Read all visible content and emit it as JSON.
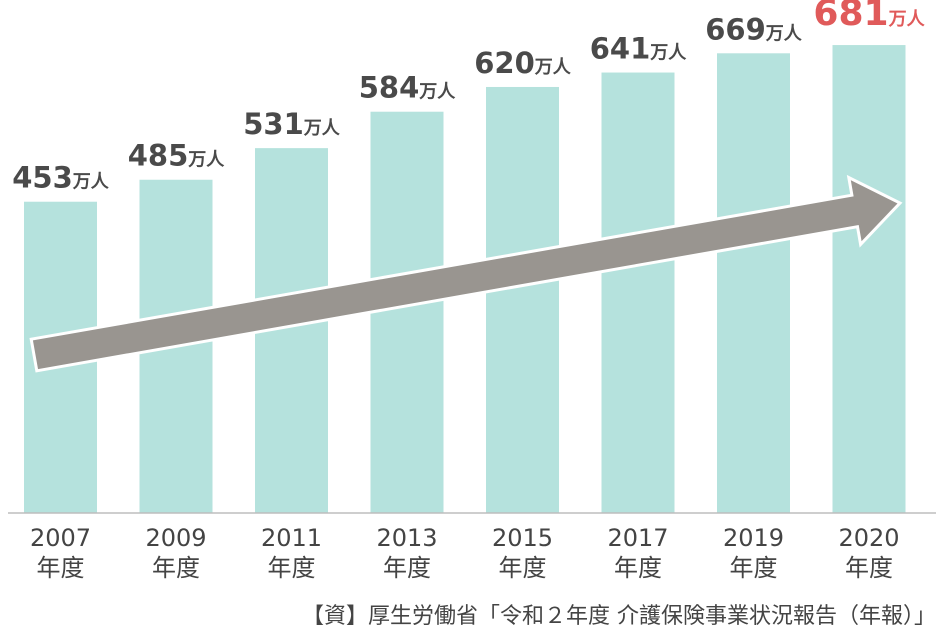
{
  "chart_data": {
    "type": "bar",
    "categories": [
      "2007",
      "2009",
      "2011",
      "2013",
      "2015",
      "2017",
      "2019",
      "2020"
    ],
    "category_suffix": "年度",
    "values": [
      453,
      485,
      531,
      584,
      620,
      641,
      669,
      681
    ],
    "value_unit": "万人",
    "highlight_index": 7,
    "ylim": [
      0,
      700
    ],
    "grid": false,
    "colors": {
      "bar": "#b5e2dd",
      "highlight_label": "#e05a5a",
      "label": "#4a4a4a",
      "arrow": "#999590",
      "axis": "#bdbdbd"
    }
  },
  "source_note": "【資】厚生労働省「令和２年度 介護保険事業状況報告（年報）」"
}
